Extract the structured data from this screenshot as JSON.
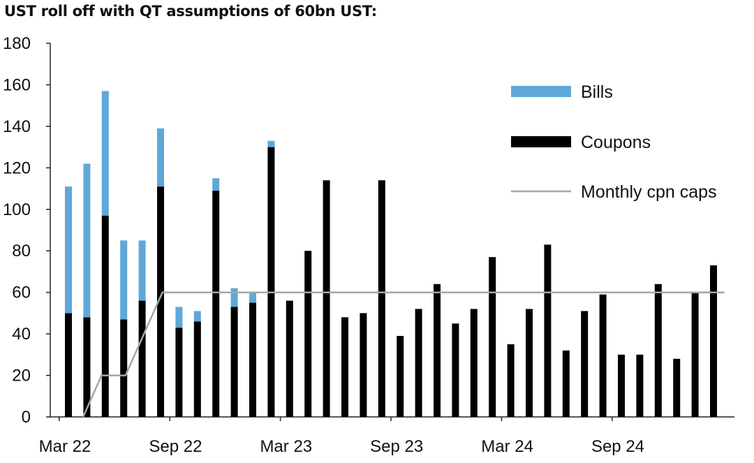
{
  "chart_data": {
    "type": "bar",
    "stacked": true,
    "title": "UST roll off with QT assumptions of 60bn UST:",
    "xlabel": "",
    "ylabel": "",
    "ylim": [
      0,
      180
    ],
    "yticks": [
      0,
      20,
      40,
      60,
      80,
      100,
      120,
      140,
      160,
      180
    ],
    "categories": [
      "Mar 22",
      "Apr 22",
      "May 22",
      "Jun 22",
      "Jul 22",
      "Aug 22",
      "Sep 22",
      "Oct 22",
      "Nov 22",
      "Dec 22",
      "Jan 23",
      "Feb 23",
      "Mar 23",
      "Apr 23",
      "May 23",
      "Jun 23",
      "Jul 23",
      "Aug 23",
      "Sep 23",
      "Oct 23",
      "Nov 23",
      "Dec 23",
      "Jan 24",
      "Feb 24",
      "Mar 24",
      "Apr 24",
      "May 24",
      "Jun 24",
      "Jul 24",
      "Aug 24",
      "Sep 24",
      "Oct 24",
      "Nov 24",
      "Dec 24",
      "Jan 25",
      "Feb 25",
      "Mar 25"
    ],
    "x_tick_labels": [
      "Mar 22",
      "Sep 22",
      "Mar 23",
      "Sep 23",
      "Mar 24",
      "Sep 24"
    ],
    "x_tick_label_indices": [
      0,
      6,
      12,
      18,
      24,
      30
    ],
    "series": [
      {
        "name": "Coupons",
        "color": "#000000",
        "values": [
          50,
          48,
          97,
          47,
          56,
          111,
          43,
          46,
          109,
          53,
          55,
          130,
          56,
          80,
          114,
          48,
          50,
          114,
          39,
          52,
          64,
          45,
          52,
          77,
          35,
          52,
          83,
          32,
          51,
          59,
          30,
          30,
          64,
          28,
          60,
          73,
          0
        ]
      },
      {
        "name": "Bills",
        "color": "#5fa8d8",
        "values": [
          61,
          74,
          60,
          38,
          29,
          28,
          10,
          5,
          6,
          9,
          5,
          3,
          0,
          0,
          0,
          0,
          0,
          0,
          0,
          0,
          0,
          0,
          0,
          0,
          0,
          0,
          0,
          0,
          0,
          0,
          0,
          0,
          0,
          0,
          0,
          0,
          0
        ]
      }
    ],
    "lines": [
      {
        "name": "Monthly cpn caps",
        "color": "#a6a6a6",
        "points": [
          [
            0.8,
            0
          ],
          [
            1.8,
            20
          ],
          [
            3.1,
            20
          ],
          [
            5.1,
            60
          ],
          [
            35.6,
            60
          ]
        ]
      }
    ],
    "legend": {
      "placement": "top-right",
      "entries": [
        "Bills",
        "Coupons",
        "Monthly cpn caps"
      ]
    },
    "grid": false
  }
}
